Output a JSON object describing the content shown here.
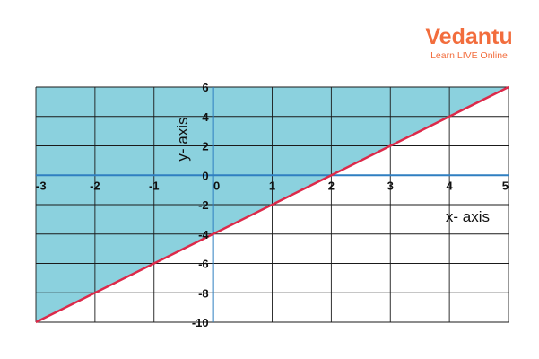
{
  "brand": {
    "name": "Vedantu",
    "tagline": "Learn LIVE Online",
    "color": "#f26d3d"
  },
  "colors": {
    "shading": "#8bd1de",
    "boundary": "#dc2a4a",
    "axis": "#2f7fc1",
    "grid": "#1a1a1a"
  },
  "chart_data": {
    "type": "line",
    "xlabel": "x- axis",
    "ylabel": "y- axis",
    "xlim": [
      -3,
      5
    ],
    "ylim": [
      -10,
      6
    ],
    "x_ticks": [
      -3,
      -2,
      -1,
      0,
      1,
      2,
      3,
      4,
      5
    ],
    "y_ticks": [
      6,
      4,
      2,
      0,
      -2,
      -4,
      -6,
      -8,
      -10
    ],
    "grid": true,
    "series": [
      {
        "x": [
          -3,
          -2,
          -1,
          0,
          1,
          2,
          3,
          4,
          5
        ],
        "y": [
          -10,
          -8,
          -6,
          -4,
          -2,
          0,
          2,
          4,
          6
        ]
      }
    ],
    "shaded_region": "above"
  }
}
